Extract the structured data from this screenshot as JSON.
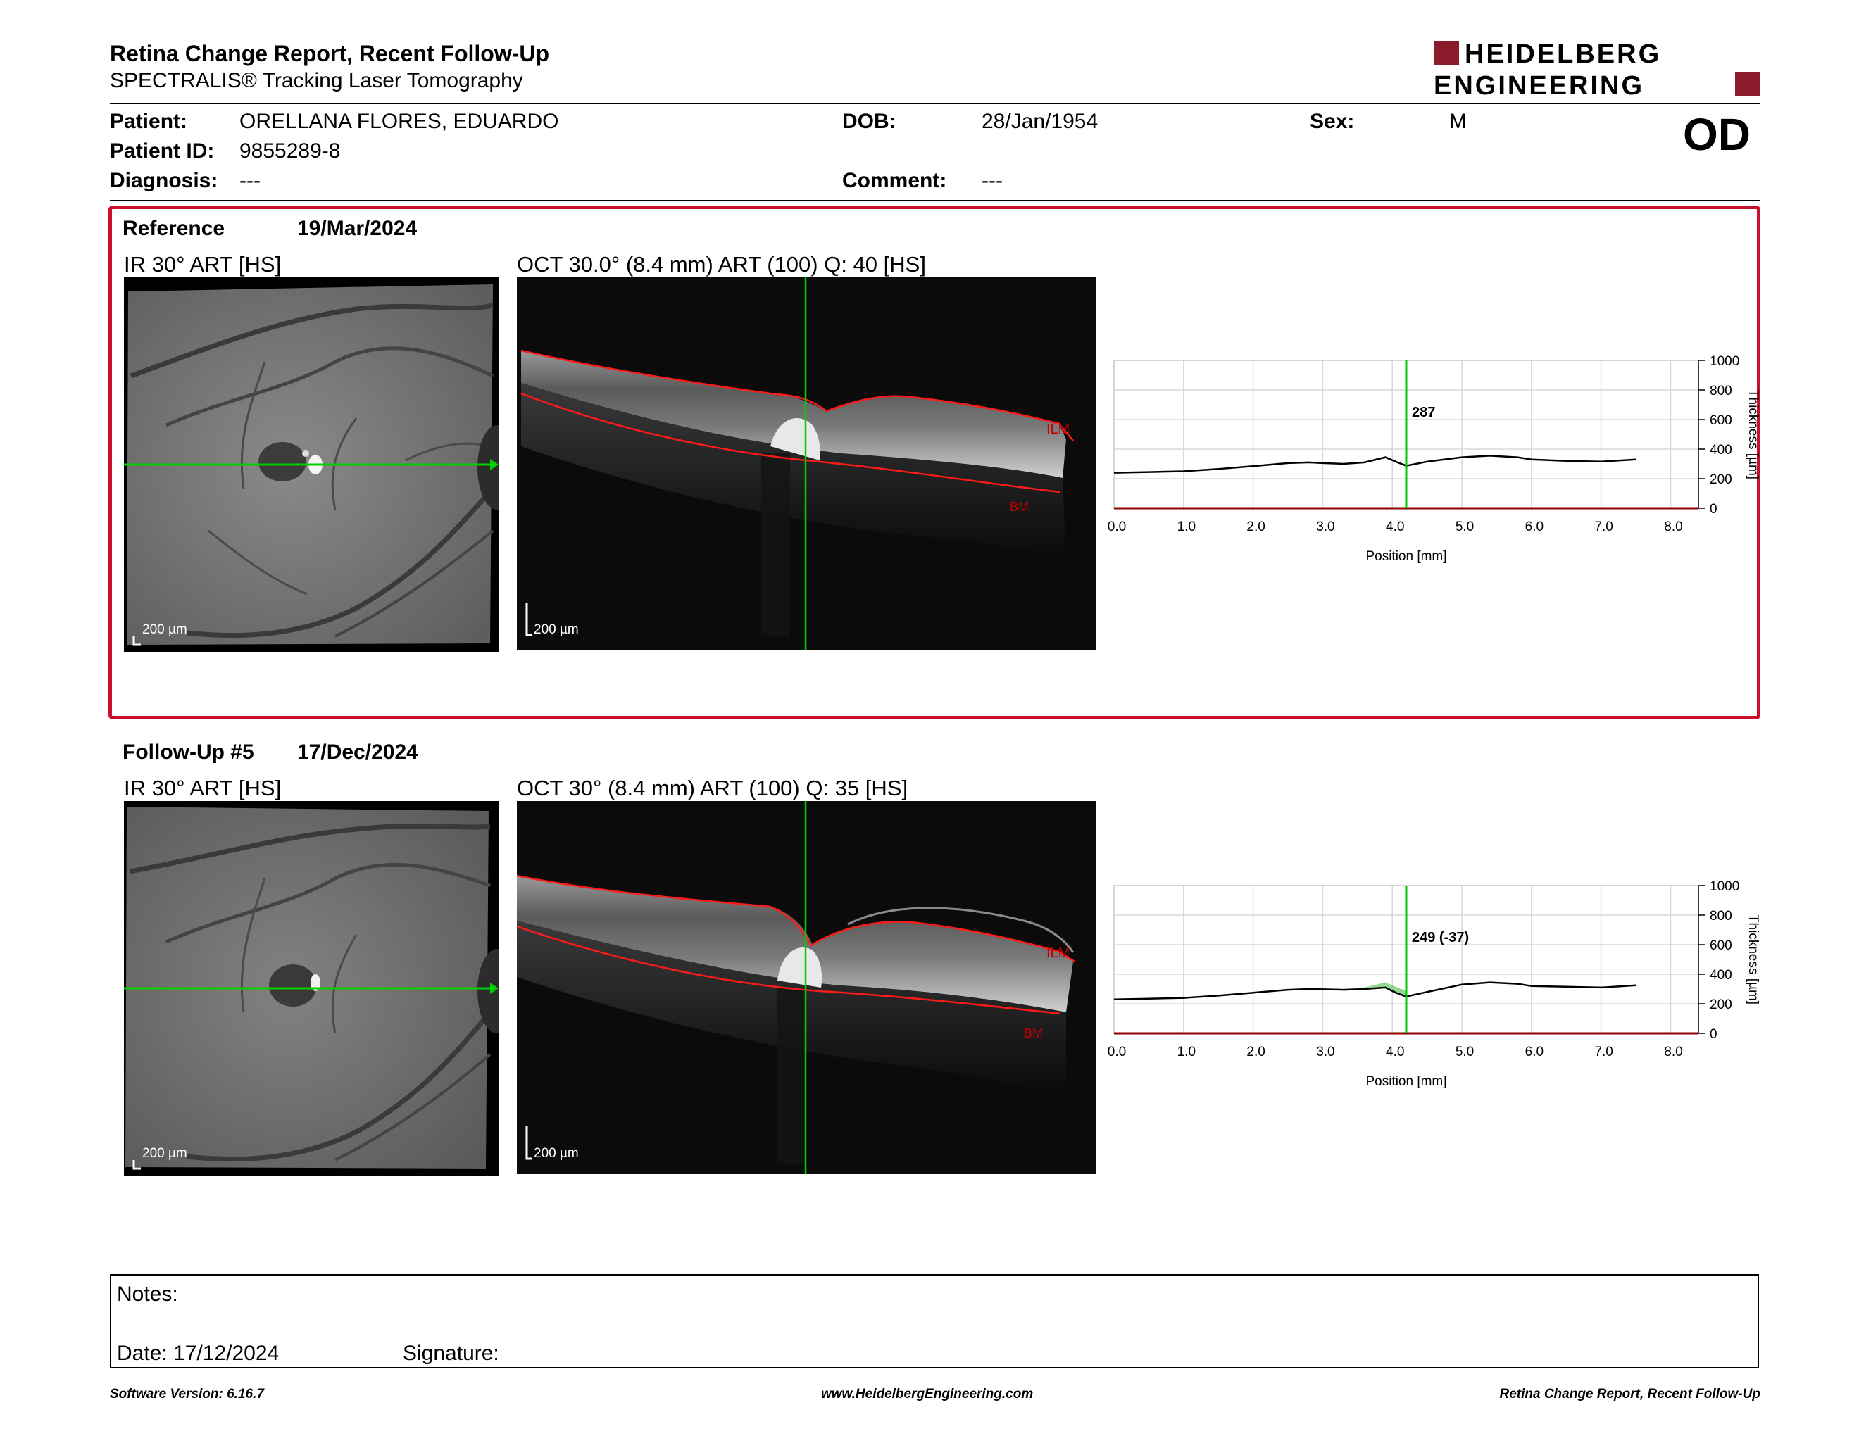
{
  "header": {
    "title": "Retina Change Report, Recent Follow-Up",
    "subtitle": "SPECTRALIS® Tracking Laser Tomography",
    "logo_line1": "HEIDELBERG",
    "logo_line2": "ENGINEERING",
    "eye": "OD"
  },
  "patient": {
    "patient_label": "Patient:",
    "patient_name": "ORELLANA FLORES, EDUARDO",
    "id_label": "Patient ID:",
    "id_value": "9855289-8",
    "diagnosis_label": "Diagnosis:",
    "diagnosis_value": "---",
    "dob_label": "DOB:",
    "dob_value": "28/Jan/1954",
    "comment_label": "Comment:",
    "comment_value": "---",
    "sex_label": "Sex:",
    "sex_value": "M"
  },
  "reference": {
    "label": "Reference",
    "date": "19/Mar/2024",
    "ir_caption": "IR 30° ART [HS]",
    "oct_caption": "OCT 30.0° (8.4 mm) ART (100) Q: 40 [HS]",
    "ir_scale": "200 µm",
    "oct_scale": "200 µm",
    "ilm_label": "ILM",
    "bm_label": "BM"
  },
  "followup": {
    "label": "Follow-Up #5",
    "date": "17/Dec/2024",
    "ir_caption": "IR 30° ART [HS]",
    "oct_caption": "OCT 30° (8.4 mm) ART (100) Q: 35 [HS]",
    "ir_scale": "200 µm",
    "oct_scale": "200 µm",
    "ilm_label": "ILM",
    "bm_label": "BM"
  },
  "chart_data": [
    {
      "type": "line",
      "xlabel": "Position [mm]",
      "ylabel": "Thickness [µm]",
      "xlim": [
        0,
        8.4
      ],
      "ylim": [
        0,
        1000
      ],
      "x_ticks": [
        "0.0",
        "1.0",
        "2.0",
        "3.0",
        "4.0",
        "5.0",
        "6.0",
        "7.0",
        "8.0"
      ],
      "y_ticks": [
        "0",
        "200",
        "400",
        "600",
        "800",
        "1000"
      ],
      "cursor_x": 4.2,
      "cursor_label": "287",
      "series": [
        {
          "x": [
            0.0,
            0.5,
            1.0,
            1.5,
            2.0,
            2.5,
            2.8,
            3.0,
            3.3,
            3.6,
            3.9,
            4.05,
            4.2,
            4.5,
            5.0,
            5.4,
            5.8,
            6.0,
            6.5,
            7.0,
            7.5
          ],
          "values": [
            240,
            245,
            250,
            265,
            285,
            305,
            310,
            305,
            300,
            310,
            345,
            315,
            287,
            315,
            345,
            355,
            345,
            330,
            320,
            315,
            330
          ]
        }
      ],
      "colors": {
        "line": "#000000",
        "cursor": "#00c800",
        "axis": "#8b0000"
      }
    },
    {
      "type": "line",
      "xlabel": "Position [mm]",
      "ylabel": "Thickness [µm]",
      "xlim": [
        0,
        8.4
      ],
      "ylim": [
        0,
        1000
      ],
      "x_ticks": [
        "0.0",
        "1.0",
        "2.0",
        "3.0",
        "4.0",
        "5.0",
        "6.0",
        "7.0",
        "8.0"
      ],
      "y_ticks": [
        "0",
        "200",
        "400",
        "600",
        "800",
        "1000"
      ],
      "cursor_x": 4.2,
      "cursor_label": "249 (-37)",
      "series": [
        {
          "x": [
            0.0,
            0.5,
            1.0,
            1.5,
            2.0,
            2.5,
            2.8,
            3.0,
            3.3,
            3.6,
            3.9,
            4.05,
            4.2,
            4.5,
            5.0,
            5.4,
            5.8,
            6.0,
            6.5,
            7.0,
            7.5
          ],
          "values": [
            230,
            235,
            240,
            255,
            275,
            295,
            300,
            298,
            295,
            300,
            310,
            275,
            249,
            280,
            330,
            345,
            335,
            320,
            315,
            310,
            325
          ]
        }
      ],
      "colors": {
        "line": "#000000",
        "cursor": "#00c800",
        "axis": "#8b0000",
        "difference": "#7fd07f"
      }
    }
  ],
  "notes": {
    "notes_label": "Notes:",
    "date_label": "Date: 17/12/2024",
    "signature_label": "Signature:"
  },
  "footer": {
    "left": "Software Version: 6.16.7",
    "center": "www.HeidelbergEngineering.com",
    "right": "Retina Change Report, Recent Follow-Up"
  }
}
